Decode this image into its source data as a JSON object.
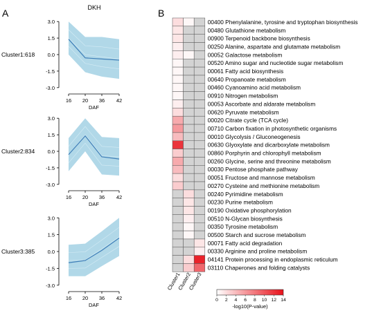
{
  "panel_labels": {
    "a": "A",
    "b": "B"
  },
  "header": "DKH",
  "colors": {
    "band": "#a8d4e6",
    "line": "#3f7fb8",
    "axis": "#000000",
    "heat_max": "#e8111a",
    "heat_min": "#ffffff",
    "na": "#d3d3d3"
  },
  "chart_data": [
    {
      "type": "line",
      "label": "Cluster1:618",
      "x": [
        "16",
        "20",
        "36",
        "42"
      ],
      "xlabel": "DAF",
      "ylim": [
        -3.2,
        3.2
      ],
      "yticks": [
        "3.0",
        "1.5",
        "0.0",
        "-1.5",
        "-3.0"
      ],
      "series": [
        {
          "role": "mean",
          "values": [
            1.4,
            -0.3,
            -0.4,
            -0.5
          ]
        },
        {
          "role": "upper",
          "values": [
            3.0,
            1.6,
            1.6,
            1.4
          ]
        },
        {
          "role": "lower",
          "values": [
            0.0,
            -1.6,
            -2.0,
            -2.2
          ]
        }
      ]
    },
    {
      "type": "line",
      "label": "Cluster2:834",
      "x": [
        "16",
        "20",
        "36",
        "42"
      ],
      "xlabel": "DAF",
      "ylim": [
        -3.2,
        3.2
      ],
      "yticks": [
        "3.0",
        "1.5",
        "0.0",
        "-1.5",
        "-3.0"
      ],
      "series": [
        {
          "role": "mean",
          "values": [
            -0.3,
            1.4,
            -0.5,
            -0.7
          ]
        },
        {
          "role": "upper",
          "values": [
            1.2,
            3.0,
            1.3,
            1.2
          ]
        },
        {
          "role": "lower",
          "values": [
            -1.8,
            0.0,
            -2.1,
            -2.2
          ]
        }
      ]
    },
    {
      "type": "line",
      "label": "Cluster3:385",
      "x": [
        "16",
        "20",
        "36",
        "42"
      ],
      "xlabel": "DAF",
      "ylim": [
        -3.2,
        3.2
      ],
      "yticks": [
        "3.0",
        "1.5",
        "0.0",
        "-1.5",
        "-3.0"
      ],
      "series": [
        {
          "role": "mean",
          "values": [
            -1.0,
            -0.8,
            0.1,
            1.2
          ]
        },
        {
          "role": "upper",
          "values": [
            0.6,
            0.7,
            1.8,
            3.0
          ]
        },
        {
          "role": "lower",
          "values": [
            -2.2,
            -2.2,
            -1.3,
            -0.4
          ]
        }
      ]
    },
    {
      "type": "heatmap",
      "columns": [
        "Cluster1",
        "Cluster2",
        "Cluster3"
      ],
      "rows": [
        "00400 Phenylalanine, tyrosine and tryptophan biosynthesis",
        "00480 Glutathione metabolism",
        "00900 Terpenoid backbone biosynthesis",
        "00250 Alanine, aspartate and glutamate metabolism",
        "00052 Galactose metabolism",
        "00520 Amino sugar and nucleotide sugar metabolism",
        "00061 Fatty acid biosynthesis",
        "00640 Propanoate metabolism",
        "00460 Cyanoamino acid metabolism",
        "00910 Nitrogen metabolism",
        "00053 Ascorbate and aldarate metabolism",
        "00620 Pyruvate metabolism",
        "00020 Citrate cycle (TCA cycle)",
        "00710 Carbon fixation in photosynthetic organisms",
        "00010 Glycolysis / Gluconeogenesis",
        "00630 Glyoxylate and dicarboxylate metabolism",
        "00860 Porphyrin and chlorophyll metabolism",
        "00260 Glycine, serine and threonine metabolism",
        "00030 Pentose phosphate pathway",
        "00051 Fructose and mannose metabolism",
        "00270 Cysteine and methionine metabolism",
        "00240 Pyrimidine metabolism",
        "00230 Purine metabolism",
        "00190 Oxidative phosphorylation",
        "00510 N-Glycan biosynthesis",
        "00350 Tyrosine metabolism",
        "00500 Starch and sucrose metabolism",
        "00071 Fatty acid degradation",
        "00330 Arginine and proline metabolism",
        "04141 Protein processing in endoplasmic reticulum",
        "03110 Chaperones and folding catalysts"
      ],
      "values": [
        [
          2,
          0.5,
          null
        ],
        [
          1.5,
          null,
          null
        ],
        [
          1.5,
          null,
          null
        ],
        [
          1,
          null,
          null
        ],
        [
          1,
          0.5,
          null
        ],
        [
          0.5,
          null,
          null
        ],
        [
          0.5,
          null,
          null
        ],
        [
          0.5,
          null,
          null
        ],
        [
          0.5,
          null,
          null
        ],
        [
          0.5,
          null,
          null
        ],
        [
          1,
          null,
          null
        ],
        [
          2,
          null,
          null
        ],
        [
          5,
          null,
          null
        ],
        [
          6,
          null,
          null
        ],
        [
          4,
          null,
          null
        ],
        [
          12,
          null,
          null
        ],
        [
          3,
          null,
          null
        ],
        [
          5,
          null,
          null
        ],
        [
          4,
          null,
          null
        ],
        [
          2,
          null,
          null
        ],
        [
          3,
          null,
          null
        ],
        [
          null,
          2,
          null
        ],
        [
          null,
          1.5,
          null
        ],
        [
          null,
          1.5,
          null
        ],
        [
          null,
          1,
          null
        ],
        [
          null,
          0.5,
          null
        ],
        [
          null,
          0.5,
          null
        ],
        [
          null,
          null,
          1.5
        ],
        [
          null,
          null,
          1
        ],
        [
          null,
          2,
          13
        ],
        [
          null,
          3,
          9
        ]
      ],
      "legend_ticks": [
        "0",
        "2",
        "4",
        "6",
        "8",
        "10",
        "12",
        "14"
      ],
      "legend_range": [
        0,
        14
      ],
      "legend_label": "-log10(P-value)"
    }
  ]
}
